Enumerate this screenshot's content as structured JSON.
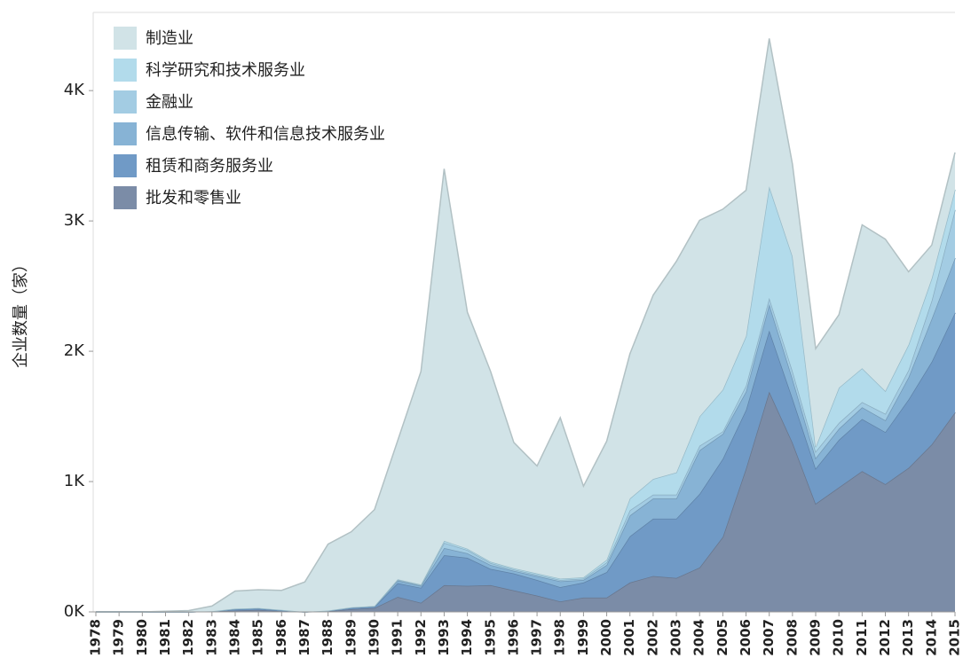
{
  "chart_data": {
    "type": "stacked_area",
    "y_label": "企业数量（家）",
    "categories": [
      "1978",
      "1979",
      "1980",
      "1981",
      "1982",
      "1983",
      "1984",
      "1985",
      "1986",
      "1987",
      "1988",
      "1989",
      "1990",
      "1991",
      "1992",
      "1993",
      "1994",
      "1995",
      "1996",
      "1997",
      "1998",
      "1999",
      "2000",
      "2001",
      "2002",
      "2003",
      "2004",
      "2005",
      "2006",
      "2007",
      "2008",
      "2009",
      "2010",
      "2011",
      "2012",
      "2013",
      "2014",
      "2015"
    ],
    "series": [
      {
        "name": "制造业",
        "color": "#d1e3e7",
        "values": [
          0,
          0,
          0,
          5,
          10,
          40,
          135,
          140,
          150,
          230,
          510,
          580,
          740,
          1065,
          1635,
          2855,
          1815,
          1460,
          965,
          825,
          1235,
          700,
          910,
          1110,
          1410,
          1620,
          1505,
          1385,
          1120,
          1135,
          705,
          755,
          560,
          1100,
          1165,
          560,
          255,
          285
        ]
      },
      {
        "name": "科学研究和技术服务业",
        "color": "#b2dbeb",
        "values": [
          0,
          0,
          0,
          0,
          0,
          0,
          0,
          0,
          0,
          0,
          0,
          0,
          0,
          5,
          5,
          15,
          10,
          10,
          10,
          10,
          10,
          10,
          20,
          90,
          120,
          170,
          225,
          320,
          380,
          855,
          880,
          35,
          270,
          260,
          175,
          195,
          170,
          155
        ]
      },
      {
        "name": "金融业",
        "color": "#a3cce3",
        "values": [
          0,
          0,
          0,
          0,
          0,
          0,
          0,
          0,
          0,
          0,
          0,
          0,
          0,
          5,
          5,
          40,
          25,
          15,
          10,
          10,
          10,
          10,
          20,
          40,
          30,
          30,
          35,
          20,
          45,
          50,
          60,
          50,
          45,
          40,
          50,
          55,
          140,
          370
        ]
      },
      {
        "name": "信息传输、软件和信息技术服务业",
        "color": "#87b3d5",
        "values": [
          0,
          0,
          0,
          0,
          0,
          0,
          5,
          5,
          5,
          0,
          0,
          5,
          5,
          20,
          15,
          55,
          35,
          30,
          20,
          30,
          45,
          20,
          55,
          160,
          155,
          155,
          335,
          190,
          140,
          200,
          150,
          80,
          85,
          90,
          90,
          170,
          330,
          420
        ]
      },
      {
        "name": "租赁和商务服务业",
        "color": "#709ac6",
        "values": [
          0,
          0,
          0,
          0,
          0,
          0,
          10,
          10,
          5,
          0,
          5,
          10,
          10,
          105,
          115,
          230,
          215,
          125,
          130,
          120,
          110,
          115,
          195,
          355,
          440,
          455,
          565,
          600,
          450,
          470,
          340,
          270,
          365,
          400,
          400,
          525,
          635,
          765
        ]
      },
      {
        "name": "批发和零售业",
        "color": "#7b8ca7",
        "values": [
          0,
          0,
          0,
          0,
          0,
          5,
          10,
          15,
          5,
          0,
          5,
          20,
          30,
          115,
          70,
          205,
          200,
          205,
          165,
          125,
          80,
          110,
          110,
          225,
          275,
          260,
          340,
          575,
          1100,
          1690,
          1300,
          830,
          955,
          1080,
          980,
          1105,
          1285,
          1530
        ]
      }
    ],
    "ylim": [
      0,
      4600
    ],
    "yticks": [
      {
        "value": 0,
        "label": "0K"
      },
      {
        "value": 1000,
        "label": "1K"
      },
      {
        "value": 2000,
        "label": "2K"
      },
      {
        "value": 3000,
        "label": "3K"
      },
      {
        "value": 4000,
        "label": "4K"
      }
    ]
  }
}
